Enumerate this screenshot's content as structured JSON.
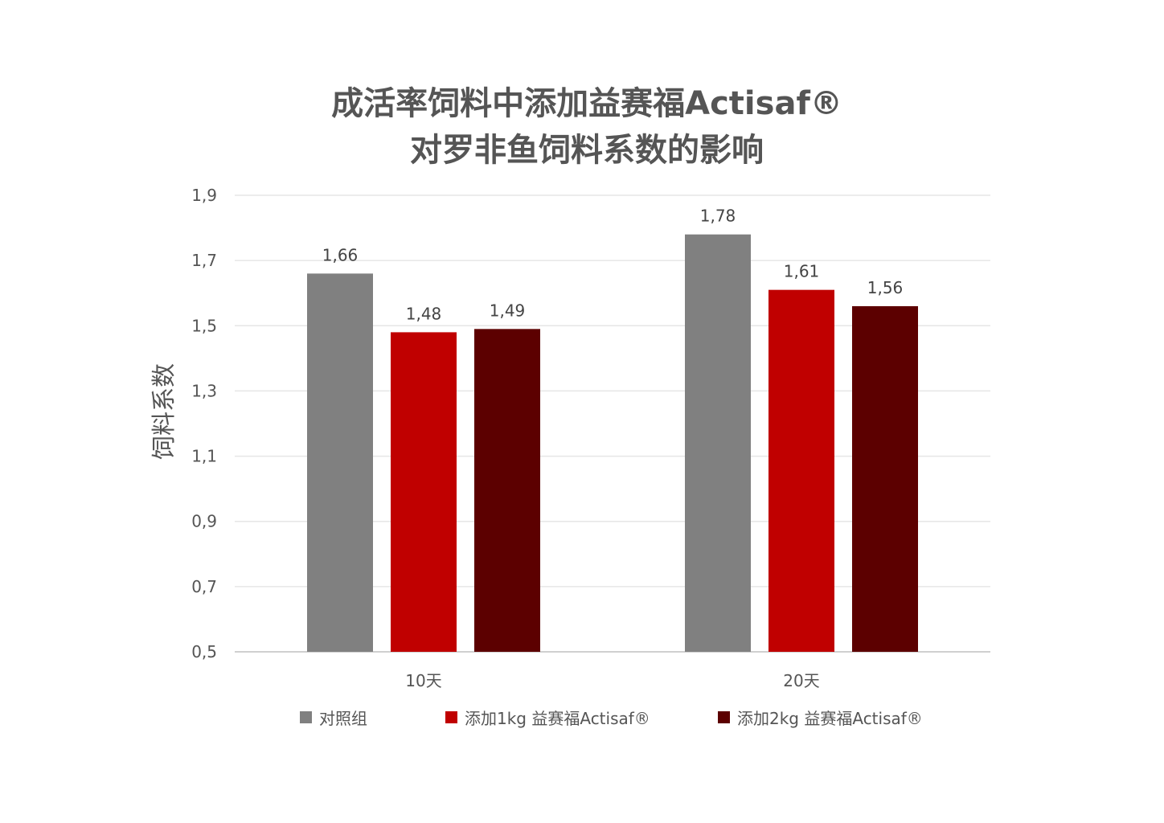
{
  "chart_data": {
    "type": "bar",
    "title_lines": [
      "成活率饲料中添加益赛福Actisaf®",
      "对罗非鱼饲料系数的影响"
    ],
    "ylabel": "饲料系数",
    "xlabel": "",
    "categories": [
      "10天",
      "20天"
    ],
    "series": [
      {
        "name": "对照组",
        "color": "#808080",
        "values": [
          1.66,
          1.78
        ],
        "labels": [
          "1,66",
          "1,78"
        ]
      },
      {
        "name": "添加1kg 益赛福Actisaf®",
        "color": "#c00000",
        "values": [
          1.48,
          1.61
        ],
        "labels": [
          "1,48",
          "1,61"
        ]
      },
      {
        "name": "添加2kg 益赛福Actisaf®",
        "color": "#5c0000",
        "values": [
          1.49,
          1.56
        ],
        "labels": [
          "1,49",
          "1,56"
        ]
      }
    ],
    "ylim": [
      0.5,
      1.9
    ],
    "yticks": [
      0.5,
      0.7,
      0.9,
      1.1,
      1.3,
      1.5,
      1.7,
      1.9
    ],
    "ytick_labels": [
      "0,5",
      "0,7",
      "0,9",
      "1,1",
      "1,3",
      "1,5",
      "1,7",
      "1,9"
    ],
    "grid": true,
    "legend_position": "bottom"
  }
}
